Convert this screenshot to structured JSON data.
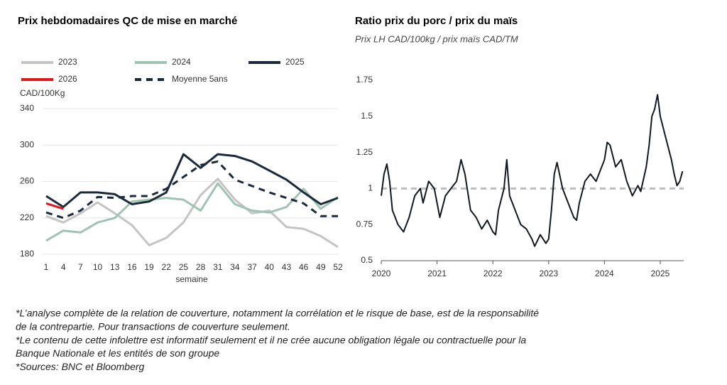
{
  "chart_data": [
    {
      "type": "line",
      "title": "Prix hebdomadaires QC de mise en marché",
      "ylabel": "CAD/100Kg",
      "xlabel": "semaine",
      "x": [
        1,
        4,
        7,
        10,
        13,
        16,
        19,
        22,
        25,
        28,
        31,
        34,
        37,
        40,
        43,
        46,
        49,
        52
      ],
      "xlim": [
        1,
        52
      ],
      "xticks": [
        1,
        4,
        7,
        10,
        13,
        16,
        19,
        22,
        25,
        28,
        31,
        34,
        37,
        40,
        43,
        46,
        49,
        52
      ],
      "ylim": [
        180,
        340
      ],
      "yticks": [
        180,
        220,
        260,
        300,
        340
      ],
      "grid": true,
      "legend": "top",
      "series": [
        {
          "name": "2023",
          "color": "#c4c4c4",
          "values": [
            222,
            215,
            225,
            237,
            225,
            212,
            190,
            198,
            215,
            245,
            263,
            240,
            225,
            228,
            210,
            208,
            200,
            188
          ]
        },
        {
          "name": "2024",
          "color": "#9fc3b3",
          "values": [
            195,
            206,
            204,
            215,
            220,
            238,
            240,
            242,
            240,
            228,
            258,
            235,
            228,
            226,
            232,
            252,
            230,
            243
          ]
        },
        {
          "name": "2025",
          "color": "#1b2a3a",
          "values": [
            244,
            232,
            248,
            248,
            246,
            235,
            238,
            248,
            290,
            275,
            290,
            288,
            282,
            272,
            262,
            248,
            235,
            242
          ]
        },
        {
          "name": "2026",
          "color": "#e0161b",
          "values": [
            236,
            230,
            null,
            null,
            null,
            null,
            null,
            null,
            null,
            null,
            null,
            null,
            null,
            null,
            null,
            null,
            null,
            null
          ]
        },
        {
          "name": "Moyenne 5ans",
          "color": "#1b2a3a",
          "dashed": true,
          "values": [
            226,
            220,
            228,
            243,
            242,
            244,
            244,
            252,
            265,
            278,
            282,
            262,
            255,
            248,
            242,
            236,
            222,
            222
          ]
        }
      ]
    },
    {
      "type": "line",
      "title": "Ratio prix du porc / prix du maïs",
      "subtitle": "Prix LH CAD/100kg / prix maïs CAD/TM",
      "xlim": [
        2020,
        2025.42
      ],
      "xticks": [
        2020,
        2021,
        2022,
        2023,
        2024,
        2025
      ],
      "ylim": [
        0.5,
        1.75
      ],
      "yticks": [
        0.5,
        0.75,
        1,
        1.25,
        1.5,
        1.75
      ],
      "grid": false,
      "reference_line": 1,
      "reference_color": "#bdbdbd",
      "x": [
        2020.0,
        2020.05,
        2020.1,
        2020.15,
        2020.2,
        2020.3,
        2020.4,
        2020.5,
        2020.6,
        2020.7,
        2020.75,
        2020.85,
        2020.95,
        2021.05,
        2021.15,
        2021.25,
        2021.35,
        2021.43,
        2021.5,
        2021.6,
        2021.7,
        2021.8,
        2021.9,
        2022.0,
        2022.05,
        2022.1,
        2022.2,
        2022.25,
        2022.3,
        2022.4,
        2022.5,
        2022.6,
        2022.7,
        2022.75,
        2022.85,
        2022.95,
        2023.0,
        2023.05,
        2023.1,
        2023.15,
        2023.25,
        2023.35,
        2023.45,
        2023.5,
        2023.55,
        2023.65,
        2023.75,
        2023.85,
        2023.95,
        2024.0,
        2024.05,
        2024.1,
        2024.2,
        2024.3,
        2024.4,
        2024.5,
        2024.6,
        2024.65,
        2024.75,
        2024.8,
        2024.85,
        2024.9,
        2024.95,
        2025.0,
        2025.1,
        2025.2,
        2025.25,
        2025.3,
        2025.35,
        2025.4
      ],
      "values": [
        0.95,
        1.1,
        1.17,
        1.05,
        0.85,
        0.75,
        0.7,
        0.8,
        0.95,
        1.0,
        0.9,
        1.05,
        1.0,
        0.8,
        0.95,
        1.0,
        1.05,
        1.2,
        1.1,
        0.85,
        0.8,
        0.72,
        0.78,
        0.7,
        0.68,
        0.85,
        1.0,
        1.2,
        0.95,
        0.85,
        0.75,
        0.72,
        0.65,
        0.6,
        0.68,
        0.62,
        0.65,
        0.85,
        1.1,
        1.18,
        1.0,
        0.9,
        0.8,
        0.78,
        0.9,
        1.05,
        1.1,
        1.05,
        1.15,
        1.2,
        1.32,
        1.3,
        1.15,
        1.2,
        1.05,
        0.95,
        1.02,
        0.98,
        1.15,
        1.3,
        1.5,
        1.55,
        1.65,
        1.5,
        1.35,
        1.2,
        1.1,
        1.02,
        1.05,
        1.12
      ],
      "color": "#111820"
    }
  ],
  "footnotes": [
    "*L’analyse complète de la relation de couverture, notamment la corrélation et le risque de base, est de la responsabilité",
    "de la contrepartie. Pour transactions de couverture seulement.",
    "*Le contenu de cette infolettre est informatif seulement et il ne crée aucune obligation légale ou contractuelle pour la",
    "Banque Nationale et les entités de son groupe",
    "*Sources: BNC et Bloomberg"
  ]
}
